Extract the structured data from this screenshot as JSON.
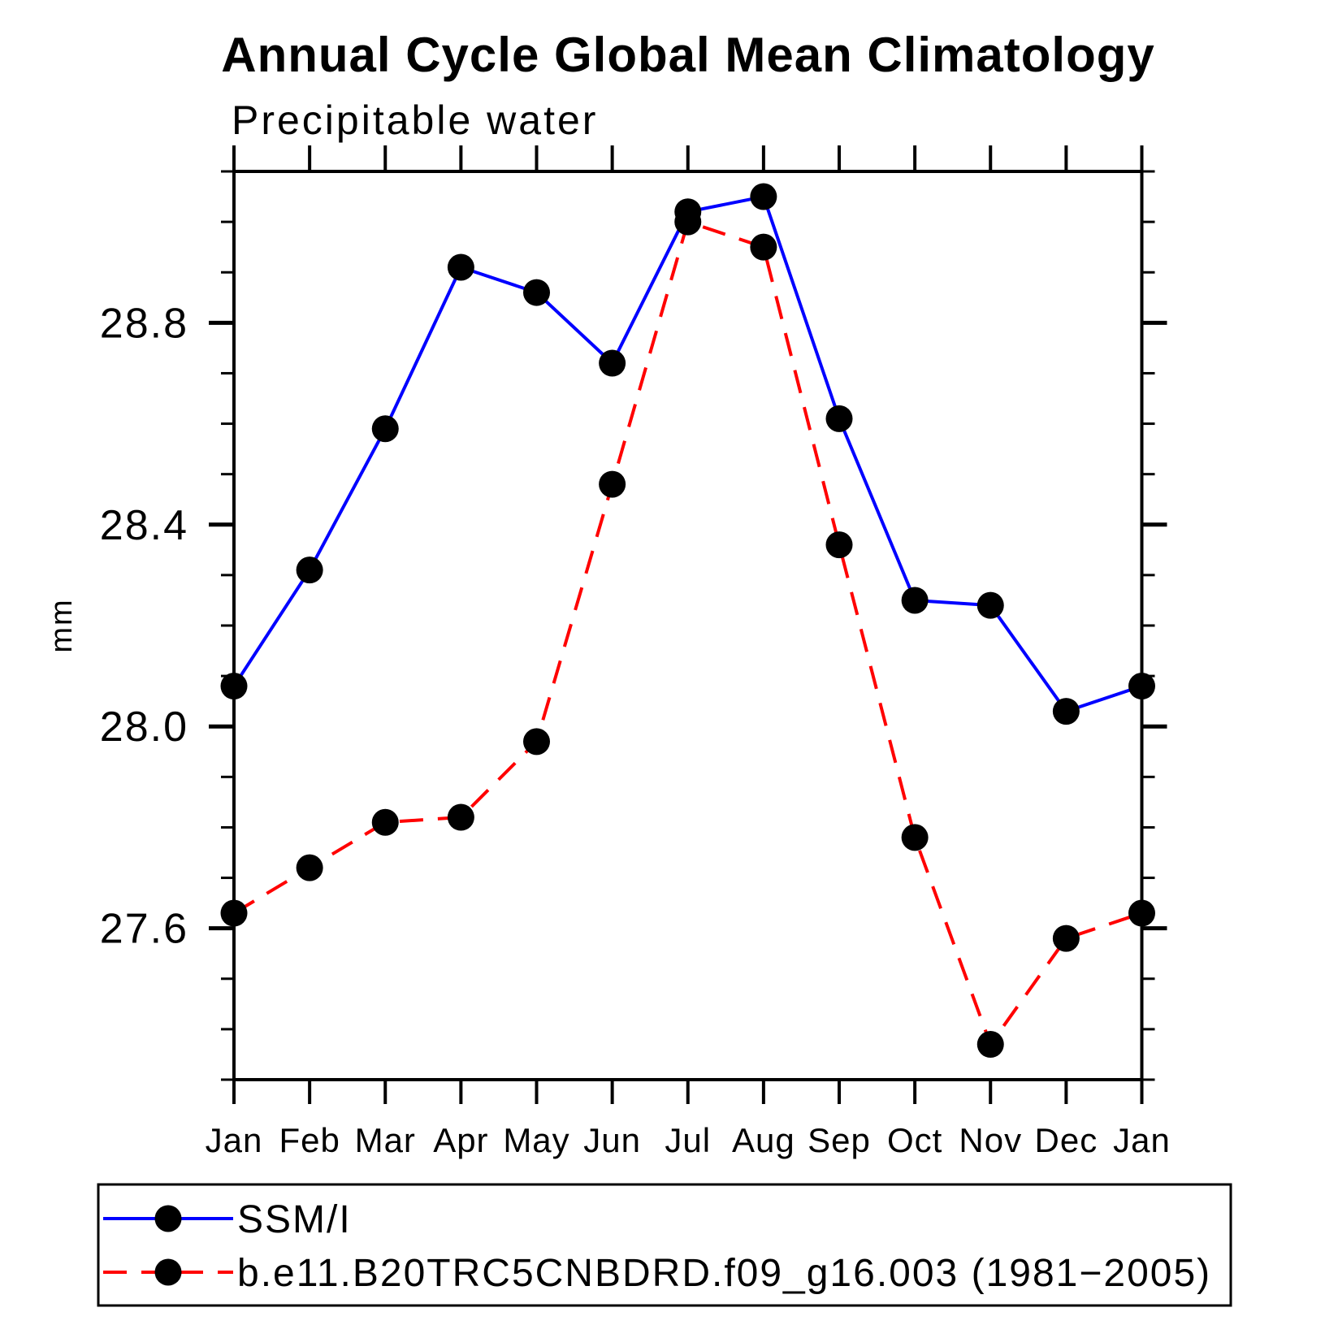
{
  "header": {
    "title": "Annual Cycle Global Mean Climatology",
    "subtitle": "Precipitable water"
  },
  "axes": {
    "y_label": "mm",
    "y_tick_labels": [
      "27.6",
      "28.0",
      "28.4",
      "28.8"
    ],
    "x_tick_labels": [
      "Jan",
      "Feb",
      "Mar",
      "Apr",
      "May",
      "Jun",
      "Jul",
      "Aug",
      "Sep",
      "Oct",
      "Nov",
      "Dec",
      "Jan"
    ]
  },
  "legend": {
    "items": [
      {
        "label": "SSM/I",
        "color": "#0000ff",
        "style": "solid",
        "marker": "filled-circle"
      },
      {
        "label": "b.e11.B20TRC5CNBDRD.f09_g16.003 (1981−2005)",
        "color": "#ff0000",
        "style": "dashed",
        "marker": "filled-circle"
      }
    ]
  },
  "chart_data": {
    "type": "line",
    "title": "Annual Cycle Global Mean Climatology",
    "subtitle": "Precipitable water",
    "xlabel": "",
    "ylabel": "mm",
    "categories": [
      "Jan",
      "Feb",
      "Mar",
      "Apr",
      "May",
      "Jun",
      "Jul",
      "Aug",
      "Sep",
      "Oct",
      "Nov",
      "Dec",
      "Jan"
    ],
    "series": [
      {
        "name": "SSM/I",
        "color": "#0000ff",
        "line_style": "solid",
        "marker": "filled-circle",
        "marker_color": "#000000",
        "values": [
          28.08,
          28.31,
          28.59,
          28.91,
          28.86,
          28.72,
          29.02,
          29.05,
          28.61,
          28.25,
          28.24,
          28.03,
          28.08
        ]
      },
      {
        "name": "b.e11.B20TRC5CNBDRD.f09_g16.003 (1981−2005)",
        "color": "#ff0000",
        "line_style": "dashed",
        "marker": "filled-circle",
        "marker_color": "#000000",
        "values": [
          27.63,
          27.72,
          27.81,
          27.82,
          27.97,
          28.48,
          29.0,
          28.95,
          28.36,
          27.78,
          27.37,
          27.58,
          27.63
        ]
      }
    ],
    "ylim": [
      27.3,
      29.1
    ],
    "y_major_ticks": [
      27.6,
      28.0,
      28.4,
      28.8
    ],
    "y_minor_step": 0.1,
    "grid": false,
    "tick_direction": "out",
    "legend_position": "bottom-left"
  }
}
